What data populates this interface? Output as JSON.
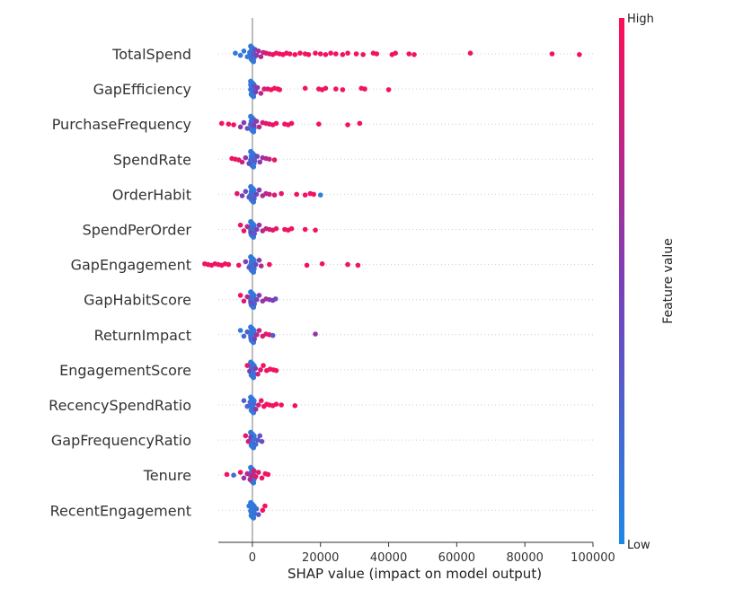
{
  "chart_data": {
    "type": "scatter",
    "subtype": "shap-beeswarm",
    "title": "",
    "xlabel": "SHAP value (impact on model output)",
    "ylabel": "",
    "xlim": [
      -10000,
      100000
    ],
    "x_ticks": [
      0,
      20000,
      40000,
      60000,
      80000,
      100000
    ],
    "x_tick_labels": [
      "0",
      "20000",
      "40000",
      "60000",
      "80000",
      "100000"
    ],
    "colorbar": {
      "label": "Feature value",
      "high_label": "High",
      "low_label": "Low",
      "low_color": "#1e88e5",
      "high_color": "#ff0d57"
    },
    "grid": false,
    "features": [
      {
        "name": "TotalSpend",
        "points": [
          {
            "x": -5000,
            "v": 0.1
          },
          {
            "x": -3500,
            "v": 0.1
          },
          {
            "x": -2500,
            "v": 0.1
          },
          {
            "x": -1500,
            "v": 0.1
          },
          {
            "x": -800,
            "v": 0.15
          },
          {
            "x": -200,
            "v": 0.2
          },
          {
            "x": 300,
            "v": 0.3
          },
          {
            "x": 800,
            "v": 0.4
          },
          {
            "x": 1200,
            "v": 0.55
          },
          {
            "x": 1800,
            "v": 0.65
          },
          {
            "x": 2500,
            "v": 0.7
          },
          {
            "x": 3200,
            "v": 0.8
          },
          {
            "x": 4000,
            "v": 0.85
          },
          {
            "x": 5000,
            "v": 0.9
          },
          {
            "x": 6000,
            "v": 0.9
          },
          {
            "x": 7000,
            "v": 0.95
          },
          {
            "x": 8000,
            "v": 0.95
          },
          {
            "x": 9000,
            "v": 0.95
          },
          {
            "x": 10000,
            "v": 0.95
          },
          {
            "x": 11000,
            "v": 0.95
          },
          {
            "x": 12500,
            "v": 0.95
          },
          {
            "x": 14000,
            "v": 0.95
          },
          {
            "x": 15500,
            "v": 0.95
          },
          {
            "x": 16500,
            "v": 0.95
          },
          {
            "x": 18500,
            "v": 0.95
          },
          {
            "x": 20000,
            "v": 0.95
          },
          {
            "x": 21500,
            "v": 0.95
          },
          {
            "x": 23000,
            "v": 0.95
          },
          {
            "x": 24500,
            "v": 0.95
          },
          {
            "x": 26500,
            "v": 0.95
          },
          {
            "x": 28000,
            "v": 0.95
          },
          {
            "x": 30500,
            "v": 0.95
          },
          {
            "x": 32500,
            "v": 0.95
          },
          {
            "x": 35500,
            "v": 0.95
          },
          {
            "x": 36500,
            "v": 0.95
          },
          {
            "x": 41000,
            "v": 0.95
          },
          {
            "x": 42000,
            "v": 0.95
          },
          {
            "x": 46000,
            "v": 0.95
          },
          {
            "x": 47500,
            "v": 0.95
          },
          {
            "x": 64000,
            "v": 0.95
          },
          {
            "x": 88000,
            "v": 0.95
          },
          {
            "x": 96000,
            "v": 0.95
          }
        ]
      },
      {
        "name": "GapEfficiency",
        "points": [
          {
            "x": -500,
            "v": 0.1
          },
          {
            "x": 0,
            "v": 0.2
          },
          {
            "x": 500,
            "v": 0.35
          },
          {
            "x": 1000,
            "v": 0.5
          },
          {
            "x": 1500,
            "v": 0.6
          },
          {
            "x": 2500,
            "v": 0.75
          },
          {
            "x": 3500,
            "v": 0.85
          },
          {
            "x": 4500,
            "v": 0.9
          },
          {
            "x": 5500,
            "v": 0.95
          },
          {
            "x": 6500,
            "v": 0.95
          },
          {
            "x": 7500,
            "v": 0.95
          },
          {
            "x": 8000,
            "v": 0.95
          },
          {
            "x": 15500,
            "v": 0.95
          },
          {
            "x": 19500,
            "v": 0.95
          },
          {
            "x": 20500,
            "v": 0.95
          },
          {
            "x": 21500,
            "v": 0.95
          },
          {
            "x": 24500,
            "v": 0.95
          },
          {
            "x": 26500,
            "v": 0.95
          },
          {
            "x": 32000,
            "v": 0.95
          },
          {
            "x": 33000,
            "v": 0.95
          },
          {
            "x": 40000,
            "v": 0.95
          }
        ]
      },
      {
        "name": "PurchaseFrequency",
        "points": [
          {
            "x": -9000,
            "v": 0.95
          },
          {
            "x": -7000,
            "v": 0.95
          },
          {
            "x": -5500,
            "v": 0.95
          },
          {
            "x": -3500,
            "v": 0.6
          },
          {
            "x": -2500,
            "v": 0.5
          },
          {
            "x": -1500,
            "v": 0.4
          },
          {
            "x": -500,
            "v": 0.3
          },
          {
            "x": 0,
            "v": 0.25
          },
          {
            "x": 500,
            "v": 0.5
          },
          {
            "x": 1200,
            "v": 0.6
          },
          {
            "x": 2000,
            "v": 0.75
          },
          {
            "x": 3000,
            "v": 0.85
          },
          {
            "x": 4000,
            "v": 0.9
          },
          {
            "x": 5000,
            "v": 0.9
          },
          {
            "x": 6000,
            "v": 0.9
          },
          {
            "x": 7000,
            "v": 0.95
          },
          {
            "x": 9500,
            "v": 0.95
          },
          {
            "x": 10500,
            "v": 0.95
          },
          {
            "x": 11500,
            "v": 0.95
          },
          {
            "x": 19500,
            "v": 0.95
          },
          {
            "x": 28000,
            "v": 0.95
          },
          {
            "x": 31500,
            "v": 0.95
          }
        ]
      },
      {
        "name": "SpendRate",
        "points": [
          {
            "x": -6000,
            "v": 0.95
          },
          {
            "x": -5000,
            "v": 0.95
          },
          {
            "x": -4000,
            "v": 0.9
          },
          {
            "x": -3000,
            "v": 0.8
          },
          {
            "x": -2000,
            "v": 0.6
          },
          {
            "x": -1000,
            "v": 0.4
          },
          {
            "x": -300,
            "v": 0.2
          },
          {
            "x": 200,
            "v": 0.15
          },
          {
            "x": 700,
            "v": 0.3
          },
          {
            "x": 1400,
            "v": 0.45
          },
          {
            "x": 2200,
            "v": 0.55
          },
          {
            "x": 3000,
            "v": 0.6
          },
          {
            "x": 4000,
            "v": 0.7
          },
          {
            "x": 5000,
            "v": 0.8
          },
          {
            "x": 6500,
            "v": 0.9
          }
        ]
      },
      {
        "name": "OrderHabit",
        "points": [
          {
            "x": -4500,
            "v": 0.9
          },
          {
            "x": -3000,
            "v": 0.5
          },
          {
            "x": -2000,
            "v": 0.4
          },
          {
            "x": -1000,
            "v": 0.3
          },
          {
            "x": -200,
            "v": 0.2
          },
          {
            "x": 500,
            "v": 0.3
          },
          {
            "x": 1200,
            "v": 0.45
          },
          {
            "x": 2000,
            "v": 0.55
          },
          {
            "x": 3000,
            "v": 0.65
          },
          {
            "x": 4000,
            "v": 0.75
          },
          {
            "x": 5000,
            "v": 0.8
          },
          {
            "x": 6500,
            "v": 0.85
          },
          {
            "x": 8500,
            "v": 0.9
          },
          {
            "x": 13000,
            "v": 0.95
          },
          {
            "x": 15500,
            "v": 0.95
          },
          {
            "x": 17000,
            "v": 0.95
          },
          {
            "x": 18000,
            "v": 0.95
          },
          {
            "x": 20000,
            "v": 0.05
          }
        ]
      },
      {
        "name": "SpendPerOrder",
        "points": [
          {
            "x": -3500,
            "v": 0.95
          },
          {
            "x": -2500,
            "v": 0.9
          },
          {
            "x": -1500,
            "v": 0.7
          },
          {
            "x": -500,
            "v": 0.4
          },
          {
            "x": 0,
            "v": 0.2
          },
          {
            "x": 600,
            "v": 0.35
          },
          {
            "x": 1300,
            "v": 0.5
          },
          {
            "x": 2000,
            "v": 0.6
          },
          {
            "x": 3000,
            "v": 0.7
          },
          {
            "x": 4000,
            "v": 0.8
          },
          {
            "x": 5000,
            "v": 0.85
          },
          {
            "x": 6000,
            "v": 0.9
          },
          {
            "x": 7000,
            "v": 0.9
          },
          {
            "x": 9500,
            "v": 0.95
          },
          {
            "x": 10500,
            "v": 0.95
          },
          {
            "x": 11500,
            "v": 0.95
          },
          {
            "x": 15500,
            "v": 0.95
          },
          {
            "x": 18500,
            "v": 0.95
          }
        ]
      },
      {
        "name": "GapEngagement",
        "points": [
          {
            "x": -14000,
            "v": 0.95
          },
          {
            "x": -13000,
            "v": 0.95
          },
          {
            "x": -12000,
            "v": 0.95
          },
          {
            "x": -11000,
            "v": 0.95
          },
          {
            "x": -10000,
            "v": 0.95
          },
          {
            "x": -9000,
            "v": 0.95
          },
          {
            "x": -8000,
            "v": 0.95
          },
          {
            "x": -7000,
            "v": 0.95
          },
          {
            "x": -4000,
            "v": 0.95
          },
          {
            "x": -2000,
            "v": 0.5
          },
          {
            "x": -1000,
            "v": 0.3
          },
          {
            "x": -300,
            "v": 0.15
          },
          {
            "x": 300,
            "v": 0.2
          },
          {
            "x": 1000,
            "v": 0.4
          },
          {
            "x": 2000,
            "v": 0.55
          },
          {
            "x": 2600,
            "v": 0.7
          },
          {
            "x": 5000,
            "v": 0.95
          },
          {
            "x": 16000,
            "v": 0.95
          },
          {
            "x": 20500,
            "v": 0.95
          },
          {
            "x": 28000,
            "v": 0.95
          },
          {
            "x": 31000,
            "v": 0.95
          }
        ]
      },
      {
        "name": "GapHabitScore",
        "points": [
          {
            "x": -3500,
            "v": 0.95
          },
          {
            "x": -2500,
            "v": 0.85
          },
          {
            "x": -1500,
            "v": 0.7
          },
          {
            "x": -500,
            "v": 0.4
          },
          {
            "x": 0,
            "v": 0.2
          },
          {
            "x": 600,
            "v": 0.3
          },
          {
            "x": 1300,
            "v": 0.45
          },
          {
            "x": 2000,
            "v": 0.55
          },
          {
            "x": 3000,
            "v": 0.6
          },
          {
            "x": 4000,
            "v": 0.65
          },
          {
            "x": 5000,
            "v": 0.55
          },
          {
            "x": 6000,
            "v": 0.5
          },
          {
            "x": 6800,
            "v": 0.45
          }
        ]
      },
      {
        "name": "ReturnImpact",
        "points": [
          {
            "x": -3500,
            "v": 0.1
          },
          {
            "x": -2500,
            "v": 0.2
          },
          {
            "x": -1500,
            "v": 0.3
          },
          {
            "x": -500,
            "v": 0.2
          },
          {
            "x": 0,
            "v": 0.15
          },
          {
            "x": 600,
            "v": 0.5
          },
          {
            "x": 1300,
            "v": 0.7
          },
          {
            "x": 2000,
            "v": 0.8
          },
          {
            "x": 3000,
            "v": 0.85
          },
          {
            "x": 4000,
            "v": 0.9
          },
          {
            "x": 5000,
            "v": 0.9
          },
          {
            "x": 6000,
            "v": 0.3
          },
          {
            "x": 18500,
            "v": 0.6
          }
        ]
      },
      {
        "name": "EngagementScore",
        "points": [
          {
            "x": -1500,
            "v": 0.9
          },
          {
            "x": -800,
            "v": 0.5
          },
          {
            "x": -200,
            "v": 0.2
          },
          {
            "x": 300,
            "v": 0.15
          },
          {
            "x": 900,
            "v": 0.5
          },
          {
            "x": 1600,
            "v": 0.8
          },
          {
            "x": 2400,
            "v": 0.9
          },
          {
            "x": 3200,
            "v": 0.95
          },
          {
            "x": 4200,
            "v": 0.95
          },
          {
            "x": 5200,
            "v": 0.95
          },
          {
            "x": 6200,
            "v": 0.95
          },
          {
            "x": 7000,
            "v": 0.95
          }
        ]
      },
      {
        "name": "RecencySpendRatio",
        "points": [
          {
            "x": -2500,
            "v": 0.3
          },
          {
            "x": -1500,
            "v": 0.25
          },
          {
            "x": -700,
            "v": 0.2
          },
          {
            "x": -100,
            "v": 0.15
          },
          {
            "x": 400,
            "v": 0.2
          },
          {
            "x": 1000,
            "v": 0.6
          },
          {
            "x": 1800,
            "v": 0.85
          },
          {
            "x": 2600,
            "v": 0.9
          },
          {
            "x": 3400,
            "v": 0.95
          },
          {
            "x": 4200,
            "v": 0.95
          },
          {
            "x": 5000,
            "v": 0.95
          },
          {
            "x": 6000,
            "v": 0.95
          },
          {
            "x": 7000,
            "v": 0.95
          },
          {
            "x": 8500,
            "v": 0.95
          },
          {
            "x": 12500,
            "v": 0.95
          }
        ]
      },
      {
        "name": "GapFrequencyRatio",
        "points": [
          {
            "x": -2000,
            "v": 0.9
          },
          {
            "x": -1200,
            "v": 0.8
          },
          {
            "x": -500,
            "v": 0.5
          },
          {
            "x": 0,
            "v": 0.15
          },
          {
            "x": 500,
            "v": 0.15
          },
          {
            "x": 1000,
            "v": 0.2
          },
          {
            "x": 1600,
            "v": 0.3
          },
          {
            "x": 2200,
            "v": 0.35
          },
          {
            "x": 2800,
            "v": 0.4
          }
        ]
      },
      {
        "name": "Tenure",
        "points": [
          {
            "x": -7500,
            "v": 0.95
          },
          {
            "x": -5500,
            "v": 0.2
          },
          {
            "x": -3500,
            "v": 0.95
          },
          {
            "x": -2500,
            "v": 0.6
          },
          {
            "x": -1500,
            "v": 0.7
          },
          {
            "x": -700,
            "v": 0.75
          },
          {
            "x": -100,
            "v": 0.8
          },
          {
            "x": 400,
            "v": 0.85
          },
          {
            "x": 1000,
            "v": 0.9
          },
          {
            "x": 1800,
            "v": 0.9
          },
          {
            "x": 2800,
            "v": 0.95
          },
          {
            "x": 3800,
            "v": 0.95
          },
          {
            "x": 4600,
            "v": 0.95
          }
        ]
      },
      {
        "name": "RecentEngagement",
        "points": [
          {
            "x": -1000,
            "v": 0.1
          },
          {
            "x": -400,
            "v": 0.1
          },
          {
            "x": 100,
            "v": 0.1
          },
          {
            "x": 600,
            "v": 0.15
          },
          {
            "x": 1200,
            "v": 0.2
          },
          {
            "x": 1800,
            "v": 0.3
          },
          {
            "x": 3000,
            "v": 0.95
          },
          {
            "x": 3700,
            "v": 0.95
          }
        ]
      }
    ]
  }
}
